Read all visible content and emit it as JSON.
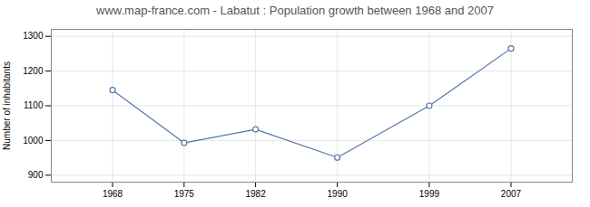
{
  "chart_data": {
    "type": "line",
    "title": "www.map-france.com - Labatut : Population growth between 1968 and 2007",
    "ylabel": "Number of inhabitants",
    "x": [
      1968,
      1975,
      1982,
      1990,
      1999,
      2007
    ],
    "values": [
      1145,
      993,
      1032,
      951,
      1100,
      1265
    ],
    "color": "#5577aa",
    "marker": "circle",
    "xlim": [
      1962,
      2013
    ],
    "xticks": [
      1968,
      1975,
      1982,
      1990,
      1999,
      2007
    ],
    "ylim": [
      880,
      1320
    ],
    "yticks": [
      900,
      1000,
      1100,
      1200,
      1300
    ],
    "grid": true
  }
}
